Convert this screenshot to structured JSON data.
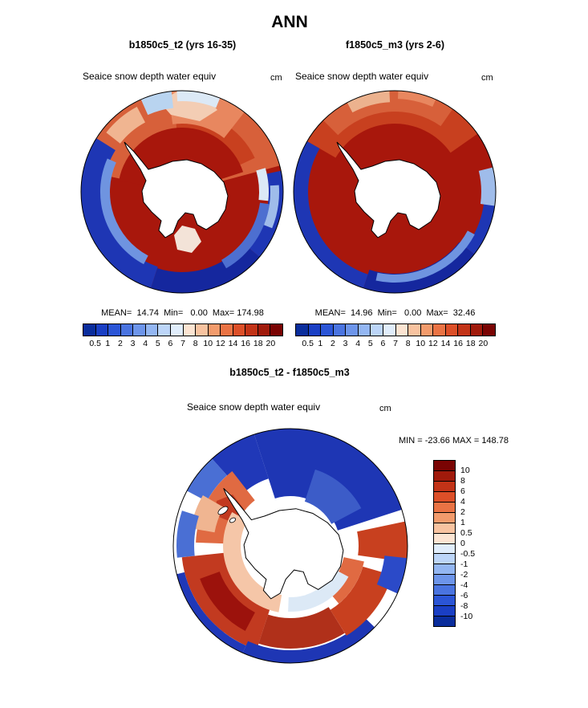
{
  "title": "ANN",
  "panels": {
    "left": {
      "title": "b1850c5_t2 (yrs 16-35)",
      "subtitle": "Seaice snow depth water equiv",
      "units": "cm",
      "stats": "MEAN=  14.74  Min=   0.00  Max= 174.98"
    },
    "right": {
      "title": "f1850c5_m3 (yrs 2-6)",
      "subtitle": "Seaice snow depth water equiv",
      "units": "cm",
      "stats": "MEAN=  14.96  Min=   0.00  Max=  32.46"
    },
    "diff": {
      "title": "b1850c5_t2 - f1850c5_m3",
      "subtitle": "Seaice snow depth water equiv",
      "units": "cm",
      "stats": "MIN = -23.66 MAX = 148.78"
    }
  },
  "colorbar": {
    "labels": [
      "0.5",
      "1",
      "2",
      "3",
      "4",
      "5",
      "6",
      "7",
      "8",
      "10",
      "12",
      "14",
      "16",
      "18",
      "20"
    ],
    "colors": [
      "#0a2d9c",
      "#1a3fc4",
      "#2b55d6",
      "#4a74e0",
      "#6d95ea",
      "#93b6f2",
      "#bcd5f8",
      "#e0edfb",
      "#fce4d2",
      "#f8c3a0",
      "#f29b6c",
      "#ea7344",
      "#dc4f28",
      "#c23317",
      "#a01a0b",
      "#7a0403"
    ]
  },
  "diff_colorbar": {
    "labels": [
      "10",
      "8",
      "6",
      "4",
      "2",
      "1",
      "0.5",
      "0",
      "-0.5",
      "-1",
      "-2",
      "-4",
      "-6",
      "-8",
      "-10"
    ],
    "colors": [
      "#7a0403",
      "#a01a0b",
      "#c23317",
      "#dc4f28",
      "#ea7344",
      "#f29b6c",
      "#f8c3a0",
      "#fce4d2",
      "#e0edfb",
      "#bcd5f8",
      "#93b6f2",
      "#6d95ea",
      "#4a74e0",
      "#2b55d6",
      "#1a3fc4",
      "#0a2d9c"
    ]
  },
  "chart_data": [
    {
      "type": "heatmap",
      "subtype": "south-polar-stereographic-map",
      "region": "Antarctica / Southern Ocean",
      "title": "b1850c5_t2 (yrs 16-35)",
      "variable": "Seaice snow depth water equiv",
      "units": "cm",
      "stats": {
        "mean": 14.74,
        "min": 0.0,
        "max": 174.98
      },
      "contour_levels": [
        0.5,
        1,
        2,
        3,
        4,
        5,
        6,
        7,
        8,
        10,
        12,
        14,
        16,
        18,
        20
      ],
      "legend_position": "bottom"
    },
    {
      "type": "heatmap",
      "subtype": "south-polar-stereographic-map",
      "region": "Antarctica / Southern Ocean",
      "title": "f1850c5_m3 (yrs 2-6)",
      "variable": "Seaice snow depth water equiv",
      "units": "cm",
      "stats": {
        "mean": 14.96,
        "min": 0.0,
        "max": 32.46
      },
      "contour_levels": [
        0.5,
        1,
        2,
        3,
        4,
        5,
        6,
        7,
        8,
        10,
        12,
        14,
        16,
        18,
        20
      ],
      "legend_position": "bottom"
    },
    {
      "type": "heatmap",
      "subtype": "south-polar-stereographic-map",
      "region": "Antarctica / Southern Ocean",
      "title": "b1850c5_t2 - f1850c5_m3",
      "variable": "Seaice snow depth water equiv",
      "units": "cm",
      "stats": {
        "min": -23.66,
        "max": 148.78
      },
      "contour_levels": [
        -10,
        -8,
        -6,
        -4,
        -2,
        -1,
        -0.5,
        0,
        0.5,
        1,
        2,
        4,
        6,
        8,
        10
      ],
      "legend_position": "right"
    }
  ]
}
